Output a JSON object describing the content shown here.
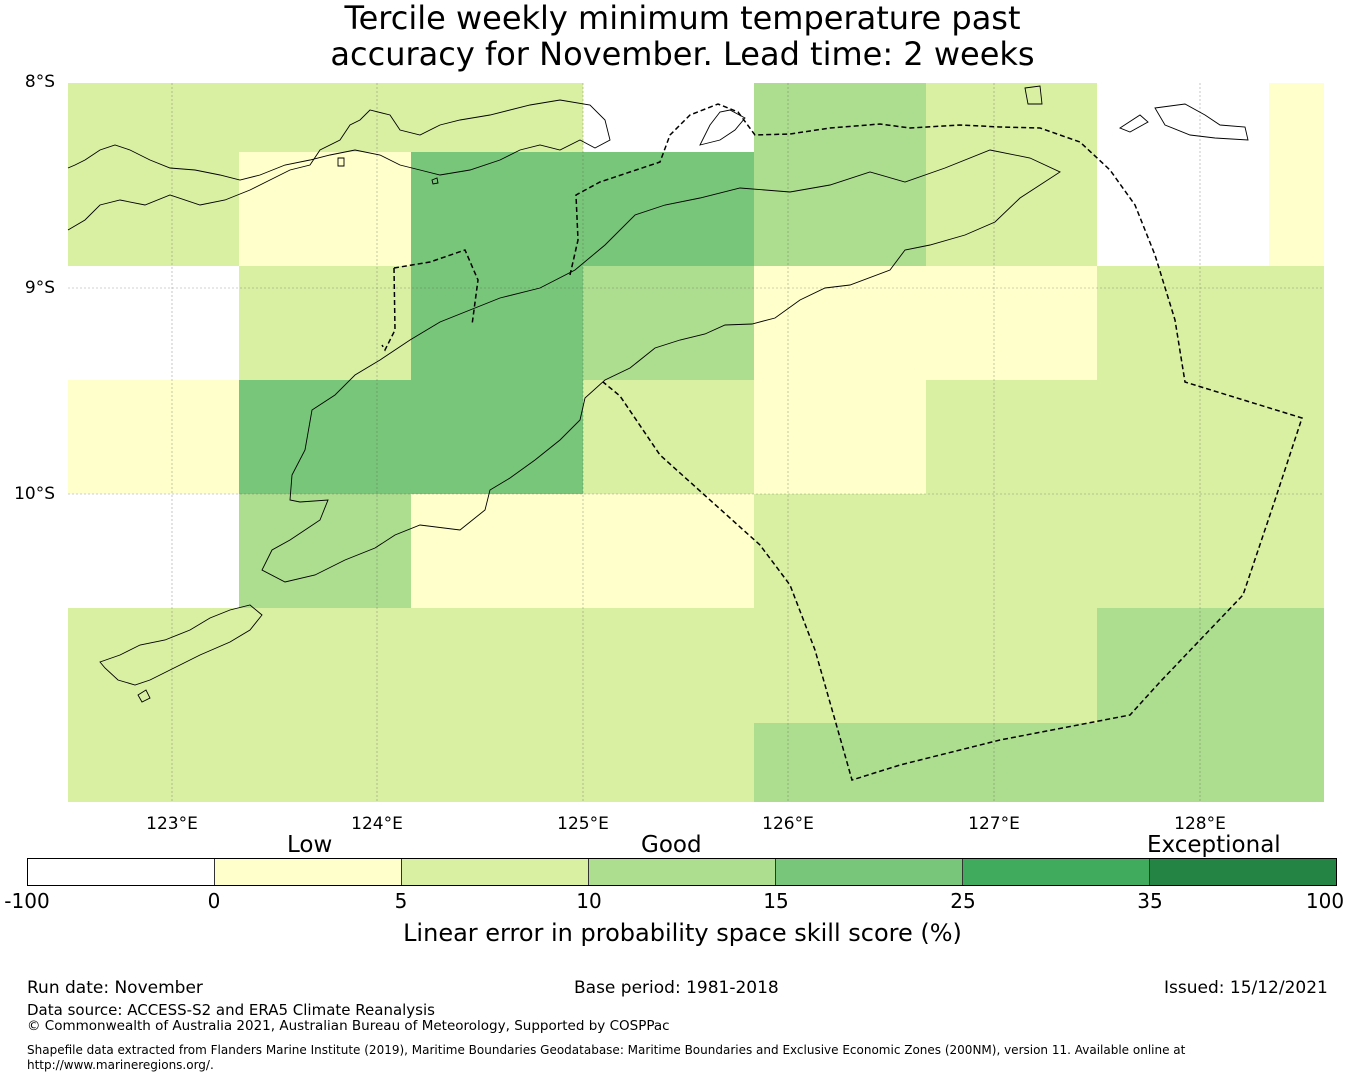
{
  "title": {
    "line1": "Tercile weekly minimum temperature past",
    "line2": "accuracy for November. Lead time: 2 weeks"
  },
  "axes": {
    "lat_labels": [
      "8°S",
      "9°S",
      "10°S"
    ],
    "lon_labels": [
      "123°E",
      "124°E",
      "125°E",
      "126°E",
      "127°E",
      "128°E"
    ]
  },
  "categories": {
    "low": "Low",
    "good": "Good",
    "exceptional": "Exceptional"
  },
  "colorbar": {
    "ticks": [
      "-100",
      "0",
      "5",
      "10",
      "15",
      "25",
      "35",
      "100"
    ],
    "colors": [
      "#ffffff",
      "#ffffcc",
      "#d9f0a3",
      "#addd8e",
      "#78c679",
      "#41ab5d",
      "#238443"
    ],
    "label": "Linear error in probability space skill score (%)"
  },
  "grid_cells": [
    [
      "d9f0a3",
      "d9f0a3",
      "d9f0a3",
      "none",
      "addd8e",
      "d9f0a3",
      "none",
      "ffffcc"
    ],
    [
      "d9f0a3",
      "ffffcc",
      "78c679",
      "78c679",
      "addd8e",
      "d9f0a3",
      "none",
      "ffffcc"
    ],
    [
      "none",
      "d9f0a3",
      "78c679",
      "addd8e",
      "ffffcc",
      "ffffcc",
      "d9f0a3",
      "d9f0a3"
    ],
    [
      "ffffcc",
      "78c679",
      "78c679",
      "d9f0a3",
      "ffffcc",
      "d9f0a3",
      "d9f0a3",
      "d9f0a3"
    ],
    [
      "none",
      "addd8e",
      "ffffcc",
      "ffffcc",
      "d9f0a3",
      "d9f0a3",
      "d9f0a3",
      "d9f0a3"
    ],
    [
      "d9f0a3",
      "d9f0a3",
      "d9f0a3",
      "d9f0a3",
      "d9f0a3",
      "d9f0a3",
      "addd8e",
      "addd8e"
    ],
    [
      "d9f0a3",
      "d9f0a3",
      "d9f0a3",
      "d9f0a3",
      "addd8e",
      "addd8e",
      "addd8e",
      "addd8e"
    ]
  ],
  "footer": {
    "run_date": "Run date: November",
    "base_period": "Base period: 1981-2018",
    "issued": "Issued: 15/12/2021",
    "data_source": "Data source: ACCESS-S2 and ERA5 Climate Reanalysis",
    "copyright": "© Commonwealth of Australia 2021, Australian Bureau of Meteorology, Supported by COSPPac",
    "shapefile_line1": "Shapefile data extracted from Flanders Marine Institute (2019), Maritime Boundaries Geodatabase: Maritime Boundaries and Exclusive Economic Zones (200NM), version 11. Available online at",
    "shapefile_line2": "http://www.marineregions.org/."
  }
}
